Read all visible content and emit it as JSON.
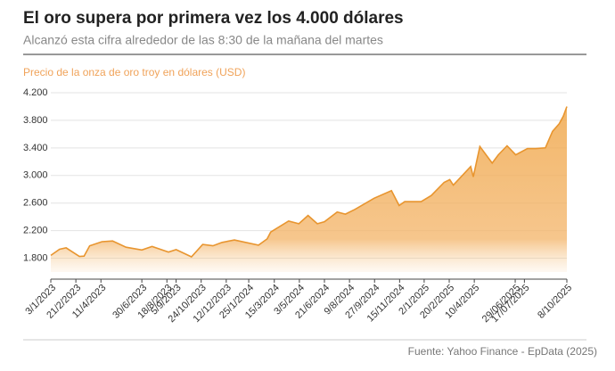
{
  "chart_data": {
    "type": "area",
    "title": "El oro supera por primera vez los 4.000 dólares",
    "subtitle": "Alcanzó esta cifra alrededor de las 8:30 de la mañana del martes",
    "y_label": "Precio de la onza de oro troy en dólares (USD)",
    "source": "Fuente: Yahoo Finance - EpData (2025)",
    "color": "#e8952f",
    "grid": true,
    "x": [
      "3/1/2023",
      "20/1/2023",
      "2/2/2023",
      "28/2/2023",
      "9/3/2023",
      "20/3/2023",
      "13/4/2023",
      "4/5/2023",
      "30/5/2023",
      "30/6/2023",
      "20/7/2023",
      "21/8/2023",
      "5/9/2023",
      "5/10/2023",
      "27/10/2023",
      "16/11/2023",
      "4/12/2023",
      "28/12/2023",
      "13/2/2024",
      "1/3/2024",
      "8/3/2024",
      "12/4/2024",
      "2/5/2024",
      "20/5/2024",
      "7/6/2024",
      "21/6/2024",
      "16/7/2024",
      "1/8/2024",
      "20/8/2024",
      "26/9/2024",
      "30/10/2024",
      "14/11/2024",
      "25/11/2024",
      "27/12/2024",
      "16/1/2025",
      "10/2/2025",
      "21/2/2025",
      "28/2/2025",
      "3/4/2025",
      "8/4/2025",
      "21/4/2025",
      "15/5/2025",
      "27/5/2025",
      "13/6/2025",
      "30/6/2025",
      "23/7/2025",
      "8/8/2025",
      "27/8/2025",
      "10/9/2025",
      "23/9/2025",
      "1/10/2025",
      "8/10/2025"
    ],
    "values": [
      1840,
      1930,
      1950,
      1825,
      1830,
      1980,
      2040,
      2050,
      1960,
      1920,
      1970,
      1890,
      1925,
      1820,
      2000,
      1980,
      2030,
      2065,
      1990,
      2080,
      2180,
      2340,
      2300,
      2420,
      2300,
      2330,
      2470,
      2440,
      2510,
      2670,
      2780,
      2565,
      2620,
      2620,
      2710,
      2900,
      2940,
      2860,
      3130,
      2980,
      3420,
      3180,
      3300,
      3430,
      3300,
      3390,
      3390,
      3400,
      3640,
      3750,
      3860,
      4000
    ],
    "xlim": [
      "3/1/2023",
      "8/10/2025"
    ],
    "xticks": [
      "3/1/2023",
      "21/2/2023",
      "11/4/2023",
      "30/6/2023",
      "18/8/2023",
      "5/9/2023",
      "24/10/2023",
      "12/12/2023",
      "25/1/2024",
      "15/3/2024",
      "3/5/2024",
      "21/6/2024",
      "9/8/2024",
      "27/9/2024",
      "15/11/2024",
      "2/1/2025",
      "20/2/2025",
      "10/4/2025",
      "29/06/2025",
      "17/07/2025",
      "8/10/2025"
    ],
    "ylim": [
      1600,
      4200
    ],
    "yticks": [
      {
        "value": 1800,
        "label": "1.800"
      },
      {
        "value": 2200,
        "label": "2.200"
      },
      {
        "value": 2600,
        "label": "2.600"
      },
      {
        "value": 3000,
        "label": "3.000"
      },
      {
        "value": 3400,
        "label": "3.400"
      },
      {
        "value": 3800,
        "label": "3.800"
      },
      {
        "value": 4200,
        "label": "4.200"
      }
    ]
  }
}
